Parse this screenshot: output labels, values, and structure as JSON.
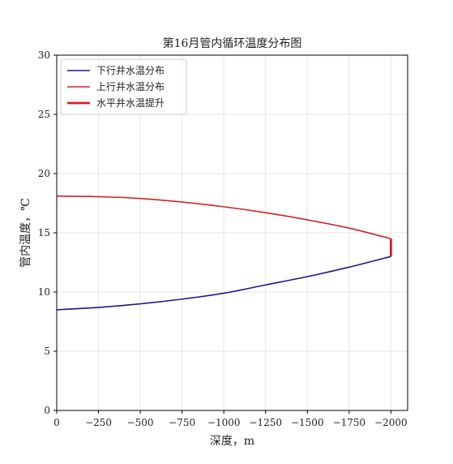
{
  "chart_data": {
    "type": "line",
    "title": "第16月管内循环温度分布图",
    "xlabel": "深度，m",
    "ylabel": "管内温度，℃",
    "xlim": [
      0,
      -2100
    ],
    "ylim": [
      0,
      30
    ],
    "x_ticks": [
      0,
      -250,
      -500,
      -750,
      -1000,
      -1250,
      -1500,
      -1750,
      -2000
    ],
    "y_ticks": [
      0,
      5,
      10,
      15,
      20,
      25,
      30
    ],
    "x_tick_labels": [
      "0",
      "−250",
      "−500",
      "−750",
      "−1000",
      "−1250",
      "−1500",
      "−1750",
      "−2000"
    ],
    "y_tick_labels": [
      "0",
      "5",
      "10",
      "15",
      "20",
      "25",
      "30"
    ],
    "grid": true,
    "legend_position": "top-left",
    "series": [
      {
        "name": "下行井水温分布",
        "color": "#1a1a8c",
        "line_width": "normal",
        "x": [
          0,
          -250,
          -500,
          -750,
          -1000,
          -1250,
          -1500,
          -1750,
          -2000
        ],
        "y": [
          8.5,
          8.7,
          9.0,
          9.4,
          9.9,
          10.6,
          11.3,
          12.1,
          13.0
        ]
      },
      {
        "name": "上行井水温分布",
        "color": "#d62020",
        "line_width": "normal",
        "x": [
          0,
          -250,
          -500,
          -750,
          -1000,
          -1250,
          -1500,
          -1750,
          -2000
        ],
        "y": [
          18.1,
          18.05,
          17.9,
          17.6,
          17.2,
          16.7,
          16.1,
          15.4,
          14.5
        ]
      },
      {
        "name": "水平井水温提升",
        "color": "#d62020",
        "line_width": "thick",
        "x": [
          -2000,
          -2000
        ],
        "y": [
          13.0,
          14.5
        ]
      }
    ]
  }
}
